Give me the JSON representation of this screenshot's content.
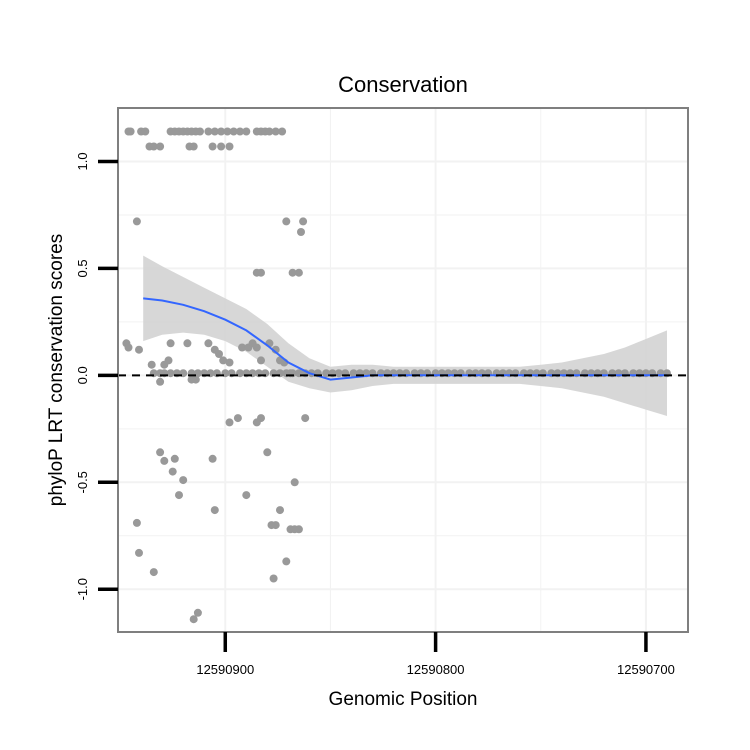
{
  "chart_data": {
    "type": "scatter",
    "title": "Conservation",
    "xlabel": "Genomic Position",
    "ylabel": "phyloP LRT conservation scores",
    "x_reversed": true,
    "xlim": [
      12590951,
      12590680
    ],
    "ylim": [
      -1.2,
      1.25
    ],
    "x_ticks": [
      {
        "value": 12590900,
        "label": "12590900"
      },
      {
        "value": 12590800,
        "label": "12590800"
      },
      {
        "value": 12590700,
        "label": "12590700"
      }
    ],
    "y_ticks": [
      {
        "value": 1.0,
        "label": "1.0"
      },
      {
        "value": 0.5,
        "label": "0.5"
      },
      {
        "value": 0.0,
        "label": "0.0"
      },
      {
        "value": -0.5,
        "label": "-0.5"
      },
      {
        "value": -1.0,
        "label": "-1.0"
      }
    ],
    "minor_x_gridlines": [
      12590850,
      12590750
    ],
    "minor_y_gridlines": [
      0.75,
      0.25,
      -0.25,
      -0.75
    ],
    "grid": true,
    "reference_line": {
      "y": 0,
      "style": "dashed",
      "color": "#000000"
    },
    "colors": {
      "points": "#999999",
      "smooth": "#3366ff",
      "band": "#d3d3d3",
      "frame": "#7f7f7f",
      "grid": "#f2f2f2"
    },
    "smooth": {
      "x": [
        12590939,
        12590930,
        12590920,
        12590910,
        12590900,
        12590890,
        12590880,
        12590870,
        12590860,
        12590850,
        12590840,
        12590830,
        12590820,
        12590810,
        12590800,
        12590790,
        12590780,
        12590770,
        12590760,
        12590750,
        12590740,
        12590730,
        12590720,
        12590710,
        12590700,
        12590690
      ],
      "y": [
        0.36,
        0.35,
        0.33,
        0.3,
        0.26,
        0.21,
        0.14,
        0.06,
        0.01,
        -0.02,
        -0.01,
        0.0,
        0.0,
        0.0,
        0.0,
        0.0,
        0.0,
        0.0,
        0.0,
        0.0,
        0.0,
        0.0,
        0.0,
        0.0,
        0.0,
        0.0
      ],
      "lower": [
        0.16,
        0.19,
        0.2,
        0.19,
        0.16,
        0.11,
        0.04,
        -0.03,
        -0.06,
        -0.08,
        -0.07,
        -0.05,
        -0.04,
        -0.04,
        -0.04,
        -0.04,
        -0.04,
        -0.04,
        -0.04,
        -0.05,
        -0.06,
        -0.08,
        -0.1,
        -0.13,
        -0.16,
        -0.19
      ],
      "upper": [
        0.56,
        0.51,
        0.46,
        0.41,
        0.36,
        0.31,
        0.24,
        0.15,
        0.08,
        0.04,
        0.05,
        0.05,
        0.04,
        0.04,
        0.04,
        0.04,
        0.04,
        0.04,
        0.04,
        0.05,
        0.06,
        0.08,
        0.1,
        0.13,
        0.17,
        0.21
      ]
    },
    "points": [
      [
        12590946,
        1.14
      ],
      [
        12590945,
        1.14
      ],
      [
        12590940,
        1.14
      ],
      [
        12590938,
        1.14
      ],
      [
        12590936,
        1.07
      ],
      [
        12590934,
        1.07
      ],
      [
        12590931,
        1.07
      ],
      [
        12590926,
        1.14
      ],
      [
        12590924,
        1.14
      ],
      [
        12590922,
        1.14
      ],
      [
        12590920,
        1.14
      ],
      [
        12590918,
        1.14
      ],
      [
        12590916,
        1.14
      ],
      [
        12590914,
        1.14
      ],
      [
        12590912,
        1.14
      ],
      [
        12590917,
        1.07
      ],
      [
        12590915,
        1.07
      ],
      [
        12590908,
        1.14
      ],
      [
        12590905,
        1.14
      ],
      [
        12590902,
        1.14
      ],
      [
        12590899,
        1.14
      ],
      [
        12590896,
        1.14
      ],
      [
        12590893,
        1.14
      ],
      [
        12590890,
        1.14
      ],
      [
        12590906,
        1.07
      ],
      [
        12590902,
        1.07
      ],
      [
        12590898,
        1.07
      ],
      [
        12590885,
        1.14
      ],
      [
        12590883,
        1.14
      ],
      [
        12590881,
        1.14
      ],
      [
        12590879,
        1.14
      ],
      [
        12590876,
        1.14
      ],
      [
        12590873,
        1.14
      ],
      [
        12590942,
        0.72
      ],
      [
        12590885,
        0.48
      ],
      [
        12590883,
        0.48
      ],
      [
        12590871,
        0.72
      ],
      [
        12590868,
        0.48
      ],
      [
        12590865,
        0.48
      ],
      [
        12590863,
        0.72
      ],
      [
        12590864,
        0.67
      ],
      [
        12590947,
        0.15
      ],
      [
        12590946,
        0.13
      ],
      [
        12590941,
        0.12
      ],
      [
        12590935,
        0.05
      ],
      [
        12590931,
        -0.03
      ],
      [
        12590929,
        0.05
      ],
      [
        12590927,
        0.07
      ],
      [
        12590926,
        0.15
      ],
      [
        12590918,
        0.15
      ],
      [
        12590916,
        -0.02
      ],
      [
        12590914,
        -0.02
      ],
      [
        12590908,
        0.15
      ],
      [
        12590905,
        0.12
      ],
      [
        12590903,
        0.1
      ],
      [
        12590901,
        0.07
      ],
      [
        12590898,
        0.06
      ],
      [
        12590892,
        0.13
      ],
      [
        12590889,
        0.13
      ],
      [
        12590887,
        0.15
      ],
      [
        12590885,
        0.13
      ],
      [
        12590883,
        0.07
      ],
      [
        12590879,
        0.15
      ],
      [
        12590876,
        0.12
      ],
      [
        12590874,
        0.07
      ],
      [
        12590872,
        0.06
      ],
      [
        12590869,
        0.01
      ],
      [
        12590862,
        -0.2
      ],
      [
        12590898,
        -0.22
      ],
      [
        12590894,
        -0.2
      ],
      [
        12590885,
        -0.22
      ],
      [
        12590883,
        -0.2
      ],
      [
        12590931,
        -0.36
      ],
      [
        12590929,
        -0.4
      ],
      [
        12590925,
        -0.45
      ],
      [
        12590924,
        -0.39
      ],
      [
        12590920,
        -0.49
      ],
      [
        12590922,
        -0.56
      ],
      [
        12590906,
        -0.39
      ],
      [
        12590890,
        -0.56
      ],
      [
        12590880,
        -0.36
      ],
      [
        12590867,
        -0.5
      ],
      [
        12590905,
        -0.63
      ],
      [
        12590874,
        -0.63
      ],
      [
        12590942,
        -0.69
      ],
      [
        12590941,
        -0.83
      ],
      [
        12590934,
        -0.92
      ],
      [
        12590878,
        -0.7
      ],
      [
        12590876,
        -0.7
      ],
      [
        12590869,
        -0.72
      ],
      [
        12590867,
        -0.72
      ],
      [
        12590865,
        -0.72
      ],
      [
        12590877,
        -0.95
      ],
      [
        12590871,
        -0.87
      ],
      [
        12590915,
        -1.14
      ],
      [
        12590913,
        -1.11
      ],
      [
        12590934,
        0.01
      ],
      [
        12590931,
        0.01
      ],
      [
        12590929,
        0.01
      ],
      [
        12590926,
        0.01
      ],
      [
        12590923,
        0.01
      ],
      [
        12590920,
        0.01
      ],
      [
        12590916,
        0.01
      ],
      [
        12590913,
        0.01
      ],
      [
        12590910,
        0.01
      ],
      [
        12590907,
        0.01
      ],
      [
        12590904,
        0.01
      ],
      [
        12590900,
        0.01
      ],
      [
        12590897,
        0.01
      ],
      [
        12590893,
        0.01
      ],
      [
        12590890,
        0.01
      ],
      [
        12590887,
        0.01
      ],
      [
        12590884,
        0.01
      ],
      [
        12590881,
        0.01
      ],
      [
        12590877,
        0.01
      ],
      [
        12590874,
        0.01
      ],
      [
        12590871,
        0.01
      ],
      [
        12590868,
        0.01
      ],
      [
        12590865,
        0.01
      ],
      [
        12590862,
        0.01
      ],
      [
        12590859,
        0.01
      ],
      [
        12590856,
        0.01
      ],
      [
        12590852,
        0.01
      ],
      [
        12590849,
        0.01
      ],
      [
        12590846,
        0.01
      ],
      [
        12590843,
        0.01
      ],
      [
        12590839,
        0.01
      ],
      [
        12590836,
        0.01
      ],
      [
        12590833,
        0.01
      ],
      [
        12590830,
        0.01
      ],
      [
        12590826,
        0.01
      ],
      [
        12590823,
        0.01
      ],
      [
        12590820,
        0.01
      ],
      [
        12590817,
        0.01
      ],
      [
        12590814,
        0.01
      ],
      [
        12590810,
        0.01
      ],
      [
        12590807,
        0.01
      ],
      [
        12590804,
        0.01
      ],
      [
        12590800,
        0.01
      ],
      [
        12590797,
        0.01
      ],
      [
        12590794,
        0.01
      ],
      [
        12590791,
        0.01
      ],
      [
        12590788,
        0.01
      ],
      [
        12590784,
        0.01
      ],
      [
        12590781,
        0.01
      ],
      [
        12590778,
        0.01
      ],
      [
        12590775,
        0.01
      ],
      [
        12590771,
        0.01
      ],
      [
        12590768,
        0.01
      ],
      [
        12590765,
        0.01
      ],
      [
        12590762,
        0.01
      ],
      [
        12590758,
        0.01
      ],
      [
        12590755,
        0.01
      ],
      [
        12590752,
        0.01
      ],
      [
        12590749,
        0.01
      ],
      [
        12590745,
        0.01
      ],
      [
        12590742,
        0.01
      ],
      [
        12590739,
        0.01
      ],
      [
        12590736,
        0.01
      ],
      [
        12590733,
        0.01
      ],
      [
        12590729,
        0.01
      ],
      [
        12590726,
        0.01
      ],
      [
        12590723,
        0.01
      ],
      [
        12590720,
        0.01
      ],
      [
        12590716,
        0.01
      ],
      [
        12590713,
        0.01
      ],
      [
        12590710,
        0.01
      ],
      [
        12590706,
        0.01
      ],
      [
        12590703,
        0.01
      ],
      [
        12590700,
        0.01
      ],
      [
        12590697,
        0.01
      ],
      [
        12590693,
        0.01
      ],
      [
        12590690,
        0.01
      ]
    ]
  }
}
